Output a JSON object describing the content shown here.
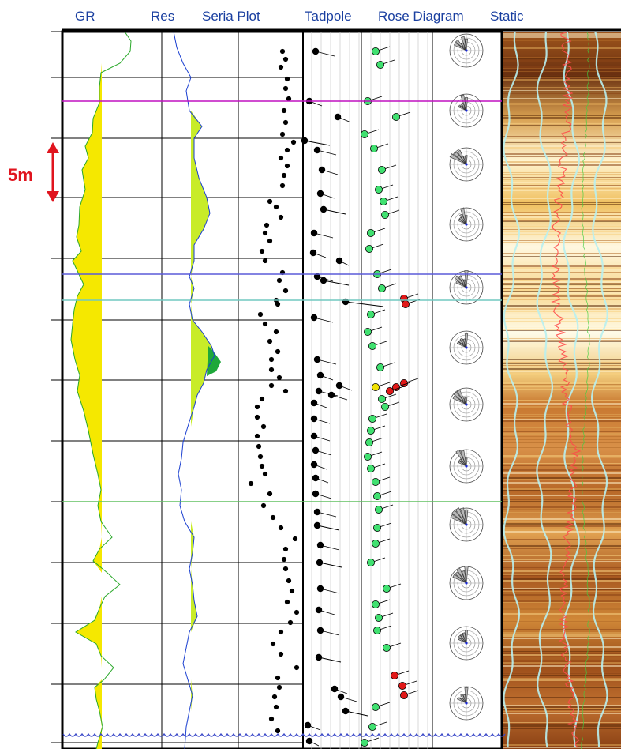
{
  "columns": [
    {
      "key": "gr",
      "label": "GR"
    },
    {
      "key": "res",
      "label": "Res"
    },
    {
      "key": "seria",
      "label": "Seria Plot"
    },
    {
      "key": "tadpole",
      "label": "Tadpole"
    },
    {
      "key": "rose",
      "label": "Rose Diagram"
    },
    {
      "key": "static",
      "label": "Static"
    }
  ],
  "scale_bar": {
    "label": "5m"
  },
  "colors": {
    "gr_fill": "#f5e800",
    "res_fill": "#c8ec28",
    "res_fill_peak": "#1ea83a",
    "gr_curve": "#2aa82a",
    "res_curve": "#1a3fd0",
    "scale_arrow": "#e0141e",
    "tadpole_green": "#40e070",
    "tadpole_red": "#e01818",
    "tadpole_yellow": "#f0e000",
    "marker_magenta": "#c010c0",
    "marker_blue": "#5a5ad8",
    "marker_teal": "#70c8c0",
    "marker_green": "#60c060"
  },
  "markers": [
    {
      "name": "marker-magenta",
      "color": "#c010c0"
    },
    {
      "name": "marker-blue",
      "color": "#5a5ad8"
    },
    {
      "name": "marker-teal",
      "color": "#70c8c0"
    },
    {
      "name": "marker-green",
      "color": "#60c060"
    }
  ],
  "rose_diagrams": 12
}
